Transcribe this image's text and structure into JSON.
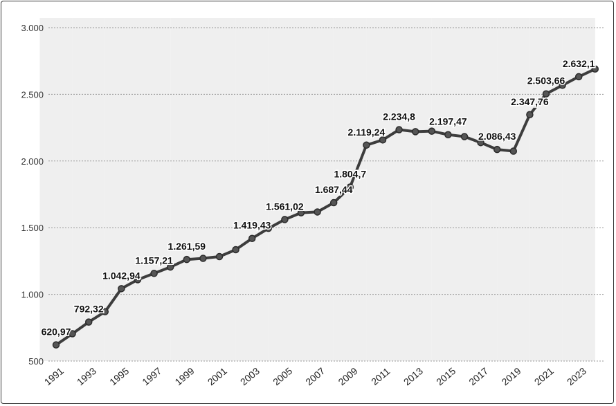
{
  "chart_data": {
    "type": "line",
    "title": "",
    "xlabel": "",
    "ylabel": "",
    "ylim": [
      500,
      3000
    ],
    "yticks": [
      500,
      1000,
      1500,
      2000,
      2500,
      3000
    ],
    "ytick_labels": [
      "500",
      "1.000",
      "1.500",
      "2.000",
      "2.500",
      "3.000"
    ],
    "xtick_labels": [
      "1991",
      "1993",
      "1995",
      "1997",
      "1999",
      "2001",
      "2003",
      "2005",
      "2007",
      "2009",
      "2011",
      "2013",
      "2015",
      "2017",
      "2019",
      "2021",
      "2023"
    ],
    "grid": true,
    "legend": "none",
    "colors": {
      "line": "#3d3d3d",
      "band": "#efefef",
      "grid": "#999999"
    },
    "x": [
      1991,
      1992,
      1993,
      1994,
      1995,
      1996,
      1997,
      1998,
      1999,
      2000,
      2001,
      2002,
      2003,
      2004,
      2005,
      2006,
      2007,
      2008,
      2009,
      2010,
      2011,
      2012,
      2013,
      2014,
      2015,
      2016,
      2017,
      2018,
      2019,
      2020,
      2021,
      2022,
      2023,
      2024
    ],
    "series": [
      {
        "values": [
          620.97,
          705,
          792.32,
          870,
          1042.94,
          1110,
          1157.21,
          1205,
          1261.59,
          1270,
          1283,
          1335,
          1419.43,
          1495,
          1561.02,
          1612,
          1618,
          1687.44,
          1804.7,
          2119.24,
          2158,
          2234.8,
          2220,
          2224,
          2197.47,
          2183,
          2138,
          2086.43,
          2074,
          2347.76,
          2503.66,
          2568,
          2632.1,
          2690
        ]
      }
    ],
    "data_labels": [
      {
        "x": 1991,
        "y": 620.97,
        "text": "620,97"
      },
      {
        "x": 1993,
        "y": 792.32,
        "text": "792,32"
      },
      {
        "x": 1995,
        "y": 1042.94,
        "text": "1.042,94"
      },
      {
        "x": 1997,
        "y": 1157.21,
        "text": "1.157,21"
      },
      {
        "x": 1999,
        "y": 1261.59,
        "text": "1.261,59"
      },
      {
        "x": 2003,
        "y": 1419.43,
        "text": "1.419,43"
      },
      {
        "x": 2005,
        "y": 1561.02,
        "text": "1.561,02"
      },
      {
        "x": 2008,
        "y": 1687.44,
        "text": "1.687,44"
      },
      {
        "x": 2009,
        "y": 1804.7,
        "text": "1.804,7"
      },
      {
        "x": 2010,
        "y": 2119.24,
        "text": "2.119,24"
      },
      {
        "x": 2012,
        "y": 2234.8,
        "text": "2.234,8"
      },
      {
        "x": 2015,
        "y": 2197.47,
        "text": "2.197,47"
      },
      {
        "x": 2018,
        "y": 2086.43,
        "text": "2.086,43"
      },
      {
        "x": 2020,
        "y": 2347.76,
        "text": "2.347,76"
      },
      {
        "x": 2021,
        "y": 2503.66,
        "text": "2.503,66"
      },
      {
        "x": 2023,
        "y": 2632.1,
        "text": "2.632,1"
      }
    ]
  }
}
